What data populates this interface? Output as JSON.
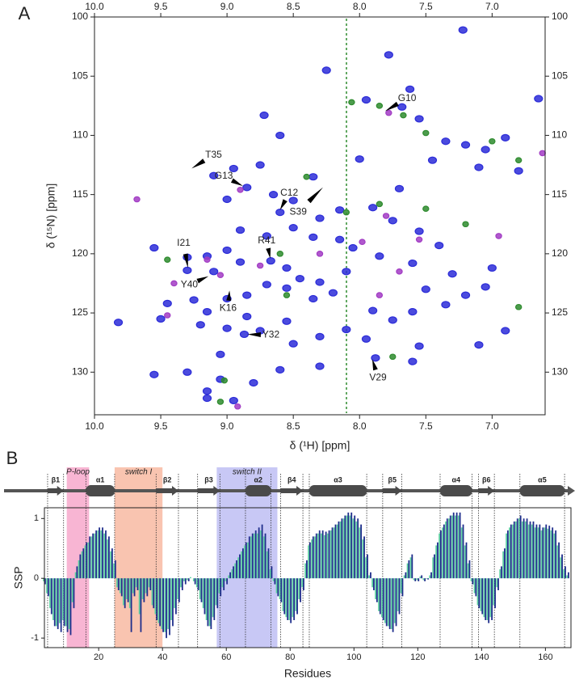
{
  "chart_data": [
    {
      "type": "scatter",
      "panel_label": "A",
      "xlabel": "δ (¹H) [ppm]",
      "ylabel": "δ (¹⁵N) [ppm]",
      "xlim": [
        10,
        6.6
      ],
      "ylim": [
        100,
        133.6
      ],
      "yreverse": true,
      "xticks": [
        {
          "value": 10,
          "label": "10.0"
        },
        9.5,
        {
          "value": 9,
          "label": "9.0"
        },
        8.5,
        {
          "value": 8,
          "label": "8.0"
        },
        7.5,
        {
          "value": 7,
          "label": "7.0"
        }
      ],
      "yticks": [
        100,
        105,
        110,
        115,
        120,
        125,
        130
      ],
      "series": [
        {
          "color": "#2c2cd8",
          "x": [
            7.22,
            7.78,
            8.25,
            7.62,
            7.68,
            7.55,
            8.72,
            8.6,
            7.35,
            7.2,
            7.05,
            6.9,
            7.45,
            7.1,
            6.8,
            8.75,
            8.95,
            9.1,
            8.85,
            9.0,
            8.65,
            8.5,
            8.6,
            8.3,
            8.15,
            7.9,
            7.75,
            7.55,
            7.4,
            7.6,
            7.85,
            8.05,
            8.15,
            8.35,
            8.5,
            8.7,
            8.9,
            9.0,
            9.55,
            9.3,
            9.15,
            9.1,
            9.3,
            8.9,
            8.67,
            8.55,
            8.45,
            8.3,
            8.2,
            8.35,
            8.55,
            8.7,
            8.85,
            9.0,
            9.25,
            9.45,
            9.15,
            9.5,
            9.2,
            9.0,
            8.75,
            8.55,
            8.5,
            8.3,
            8.1,
            7.9,
            7.6,
            7.35,
            7.2,
            7.05,
            7.5,
            7.75,
            7.95,
            7.55,
            7.6,
            7.88,
            8.3,
            8.6,
            8.87,
            9.05,
            9.3,
            9.05,
            8.8,
            9.55,
            9.15,
            8.95,
            9.15,
            9.82,
            8.85,
            7.3,
            7.0,
            6.9,
            7.1,
            7.95,
            6.65,
            8.35,
            8.1,
            7.7,
            8.0
          ],
          "y": [
            101.1,
            103.2,
            104.5,
            106.1,
            107.6,
            108.6,
            108.3,
            110.0,
            110.5,
            110.8,
            111.2,
            110.2,
            112.1,
            112.7,
            113.0,
            112.5,
            112.8,
            113.4,
            114.4,
            115.4,
            115.0,
            115.5,
            116.5,
            117.0,
            116.3,
            116.1,
            117.2,
            118.1,
            119.3,
            120.8,
            120.2,
            119.5,
            118.8,
            118.6,
            117.8,
            118.5,
            118.0,
            119.7,
            119.5,
            120.3,
            120.2,
            121.5,
            121.4,
            120.7,
            120.6,
            121.2,
            122.1,
            122.4,
            123.3,
            123.8,
            122.9,
            122.6,
            123.5,
            123.8,
            123.9,
            124.2,
            124.9,
            125.5,
            126.0,
            126.3,
            126.5,
            125.7,
            127.6,
            127.0,
            126.4,
            124.8,
            124.9,
            124.3,
            123.5,
            122.8,
            123.0,
            125.6,
            127.2,
            127.8,
            129.1,
            128.8,
            129.5,
            129.8,
            126.8,
            128.5,
            130.0,
            130.6,
            130.9,
            130.2,
            131.6,
            132.4,
            132.2,
            125.8,
            125.3,
            121.7,
            121.2,
            126.5,
            127.7,
            107.0,
            106.9,
            113.5,
            121.5,
            114.5,
            112.0
          ]
        },
        {
          "color": "#a23cc4",
          "x": [
            9.68,
            8.9,
            7.78,
            7.8,
            7.55,
            9.45,
            9.4,
            9.05,
            8.75,
            8.3,
            7.98,
            7.7,
            9.15,
            8.92,
            7.85,
            6.95,
            6.62
          ],
          "y": [
            115.4,
            114.6,
            108.1,
            116.8,
            118.8,
            125.2,
            122.5,
            121.8,
            121.0,
            120.0,
            119.0,
            121.5,
            120.5,
            132.9,
            123.5,
            118.5,
            111.5
          ]
        },
        {
          "color": "#2e8b2e",
          "x": [
            7.85,
            7.67,
            8.06,
            7.5,
            7.0,
            6.8,
            8.1,
            7.85,
            7.5,
            7.2,
            8.6,
            9.02,
            7.75,
            6.8,
            8.4,
            9.45,
            9.05,
            8.55
          ],
          "y": [
            107.5,
            108.3,
            107.2,
            109.8,
            110.5,
            112.1,
            116.5,
            115.8,
            116.2,
            117.5,
            120.0,
            130.7,
            128.7,
            124.5,
            113.5,
            120.5,
            132.5,
            123.5
          ]
        }
      ],
      "annotations": [
        {
          "text": "T35",
          "x": 9.29,
          "y": 112.95
        },
        {
          "text": "G13",
          "x": 8.86,
          "y": 114.4
        },
        {
          "text": "C12",
          "x": 8.61,
          "y": 116.5
        },
        {
          "text": "S39",
          "x": 8.25,
          "y": 114.1
        },
        {
          "text": "G10",
          "x": 7.83,
          "y": 108.1
        },
        {
          "text": "I21",
          "x": 9.29,
          "y": 121.5
        },
        {
          "text": "R41",
          "x": 8.67,
          "y": 120.6
        },
        {
          "text": "Y40",
          "x": 9.12,
          "y": 121.8
        },
        {
          "text": "K16",
          "x": 8.98,
          "y": 122.9
        },
        {
          "text": "Y32",
          "x": 8.87,
          "y": 126.8
        },
        {
          "text": "V29",
          "x": 7.91,
          "y": 128.7
        }
      ]
    },
    {
      "type": "bar",
      "panel_label": "B",
      "xlabel": "Residues",
      "ylabel": "SSP",
      "xlim": [
        3,
        168
      ],
      "ylim": [
        -1.16,
        1.18
      ],
      "xticks": [
        20,
        40,
        60,
        80,
        100,
        120,
        140,
        160
      ],
      "yticks": [
        -1,
        0,
        1
      ],
      "x": [
        3,
        4,
        5,
        6,
        7,
        8,
        9,
        10,
        11,
        12,
        13,
        14,
        15,
        16,
        17,
        18,
        19,
        20,
        21,
        22,
        23,
        24,
        25,
        26,
        27,
        28,
        29,
        30,
        31,
        32,
        33,
        34,
        35,
        36,
        37,
        38,
        39,
        40,
        41,
        42,
        43,
        44,
        45,
        46,
        47,
        48,
        49,
        50,
        51,
        52,
        53,
        54,
        55,
        56,
        57,
        58,
        59,
        60,
        61,
        62,
        63,
        64,
        65,
        66,
        67,
        68,
        69,
        70,
        71,
        72,
        73,
        74,
        75,
        76,
        77,
        78,
        79,
        80,
        81,
        82,
        83,
        84,
        85,
        86,
        87,
        88,
        89,
        90,
        91,
        92,
        93,
        94,
        95,
        96,
        97,
        98,
        99,
        100,
        101,
        102,
        103,
        104,
        105,
        106,
        107,
        108,
        109,
        110,
        111,
        112,
        113,
        114,
        115,
        116,
        117,
        118,
        119,
        120,
        121,
        122,
        123,
        124,
        125,
        126,
        127,
        128,
        129,
        130,
        131,
        132,
        133,
        134,
        135,
        136,
        137,
        138,
        139,
        140,
        141,
        142,
        143,
        144,
        145,
        146,
        147,
        148,
        149,
        150,
        151,
        152,
        153,
        154,
        155,
        156,
        157,
        158,
        159,
        160,
        161,
        162,
        163,
        164,
        165,
        166,
        167
      ],
      "series": [
        {
          "color": "#5fd0a2",
          "values": [
            -0.05,
            -0.25,
            -0.5,
            -0.7,
            -0.8,
            -0.75,
            -0.7,
            -0.8,
            -0.85,
            -0.4,
            0.1,
            0.3,
            0.45,
            0.55,
            0.6,
            0.7,
            0.75,
            0.8,
            0.8,
            0.75,
            0.65,
            0.45,
            0.25,
            -0.15,
            -0.25,
            -0.45,
            -0.35,
            -0.5,
            -0.25,
            -0.15,
            -0.6,
            -0.35,
            -0.25,
            -0.15,
            -0.45,
            -0.6,
            -0.75,
            -0.85,
            -0.9,
            -0.85,
            -0.7,
            -0.5,
            -0.35,
            -0.15,
            -0.05,
            -0.03,
            0.02,
            -0.05,
            -0.15,
            -0.35,
            -0.5,
            -0.7,
            -0.8,
            -0.65,
            -0.45,
            -0.25,
            -0.15,
            -0.05,
            0.05,
            0.15,
            0.25,
            0.35,
            0.45,
            0.55,
            0.6,
            0.7,
            0.75,
            0.75,
            0.8,
            0.7,
            0.45,
            0.15,
            -0.05,
            -0.25,
            -0.35,
            -0.55,
            -0.65,
            -0.7,
            -0.65,
            -0.55,
            -0.35,
            -0.15,
            0.25,
            0.55,
            0.65,
            0.7,
            0.75,
            0.75,
            0.72,
            0.75,
            0.8,
            0.85,
            0.9,
            0.95,
            1.0,
            1.05,
            1.05,
            1.0,
            0.95,
            0.85,
            0.65,
            0.35,
            0.05,
            -0.15,
            -0.35,
            -0.55,
            -0.65,
            -0.75,
            -0.8,
            -0.85,
            -0.75,
            -0.55,
            -0.25,
            0.05,
            0.25,
            0.35,
            -0.03,
            -0.03,
            0.03,
            -0.03,
            -0.01,
            0.05,
            0.35,
            0.55,
            0.75,
            0.85,
            0.95,
            1.0,
            1.05,
            1.05,
            1.05,
            0.85,
            0.55,
            0.25,
            -0.05,
            -0.25,
            -0.45,
            -0.55,
            -0.65,
            -0.7,
            -0.65,
            -0.45,
            -0.15,
            0.15,
            0.45,
            0.75,
            0.85,
            0.9,
            0.95,
            1.0,
            0.95,
            0.95,
            0.9,
            0.9,
            0.85,
            0.85,
            0.8,
            0.85,
            0.83,
            0.8,
            0.75,
            0.55,
            0.35,
            0.15,
            0.05
          ]
        },
        {
          "color": "#1f2e8c",
          "values": [
            -0.1,
            -0.3,
            -0.6,
            -0.8,
            -0.85,
            -0.9,
            -0.8,
            -0.9,
            -0.95,
            -0.5,
            0.2,
            0.4,
            0.5,
            0.6,
            0.7,
            0.75,
            0.8,
            0.85,
            0.85,
            0.8,
            0.7,
            0.5,
            0.3,
            -0.2,
            -0.3,
            -0.5,
            -0.4,
            -0.9,
            -0.3,
            -0.2,
            -0.9,
            -0.4,
            -0.3,
            -0.2,
            -0.5,
            -0.7,
            -0.8,
            -0.9,
            -1.0,
            -0.95,
            -0.8,
            -0.6,
            -0.4,
            -0.2,
            -0.1,
            -0.05,
            0,
            -0.1,
            -0.2,
            -0.4,
            -0.6,
            -0.8,
            -0.85,
            -0.7,
            -0.5,
            -0.3,
            -0.2,
            -0.1,
            0.1,
            0.2,
            0.3,
            0.4,
            0.5,
            0.6,
            0.7,
            0.75,
            0.8,
            0.85,
            0.9,
            0.75,
            0.5,
            0.2,
            -0.1,
            -0.3,
            -0.4,
            -0.6,
            -0.7,
            -0.75,
            -0.7,
            -0.6,
            -0.4,
            -0.2,
            0.3,
            0.6,
            0.7,
            0.75,
            0.8,
            0.8,
            0.78,
            0.8,
            0.85,
            0.9,
            0.95,
            1.0,
            1.05,
            1.1,
            1.1,
            1.05,
            1.0,
            0.9,
            0.7,
            0.4,
            0.1,
            -0.2,
            -0.4,
            -0.6,
            -0.7,
            -0.8,
            -0.85,
            -0.9,
            -0.8,
            -0.6,
            -0.3,
            0.1,
            0.3,
            0.4,
            -0.05,
            -0.05,
            0.05,
            -0.05,
            -0.02,
            0.1,
            0.4,
            0.6,
            0.8,
            0.9,
            1.0,
            1.05,
            1.1,
            1.1,
            1.1,
            0.9,
            0.6,
            0.3,
            -0.1,
            -0.3,
            -0.5,
            -0.6,
            -0.7,
            -0.75,
            -0.7,
            -0.5,
            -0.2,
            0.2,
            0.5,
            0.8,
            0.9,
            0.95,
            1.0,
            1.05,
            1.0,
            1.0,
            0.95,
            0.95,
            0.9,
            0.9,
            0.85,
            0.9,
            0.88,
            0.85,
            0.8,
            0.6,
            0.4,
            0.2,
            0.1
          ]
        }
      ],
      "regions": [
        {
          "label": "P-loop",
          "start": 10,
          "end": 17,
          "color": "#f59cc4"
        },
        {
          "label": "switch I",
          "start": 25,
          "end": 40,
          "color": "#f7b096"
        },
        {
          "label": "switch II",
          "start": 57,
          "end": 76,
          "color": "#b5b5f2"
        }
      ],
      "secondary_structure": [
        {
          "label": "β1",
          "kind": "strand",
          "start": 4,
          "end": 9
        },
        {
          "label": "α1",
          "kind": "helix",
          "start": 16,
          "end": 25
        },
        {
          "label": "β2",
          "kind": "strand",
          "start": 38,
          "end": 45
        },
        {
          "label": "β3",
          "kind": "strand",
          "start": 51,
          "end": 58
        },
        {
          "label": "α2",
          "kind": "helix",
          "start": 66,
          "end": 74
        },
        {
          "label": "β4",
          "kind": "strand",
          "start": 77,
          "end": 84
        },
        {
          "label": "α3",
          "kind": "helix",
          "start": 86,
          "end": 104
        },
        {
          "label": "β5",
          "kind": "strand",
          "start": 109,
          "end": 115
        },
        {
          "label": "α4",
          "kind": "helix",
          "start": 127,
          "end": 137
        },
        {
          "label": "β6",
          "kind": "strand",
          "start": 139,
          "end": 144
        },
        {
          "label": "α5",
          "kind": "helix",
          "start": 152,
          "end": 166
        }
      ]
    }
  ]
}
